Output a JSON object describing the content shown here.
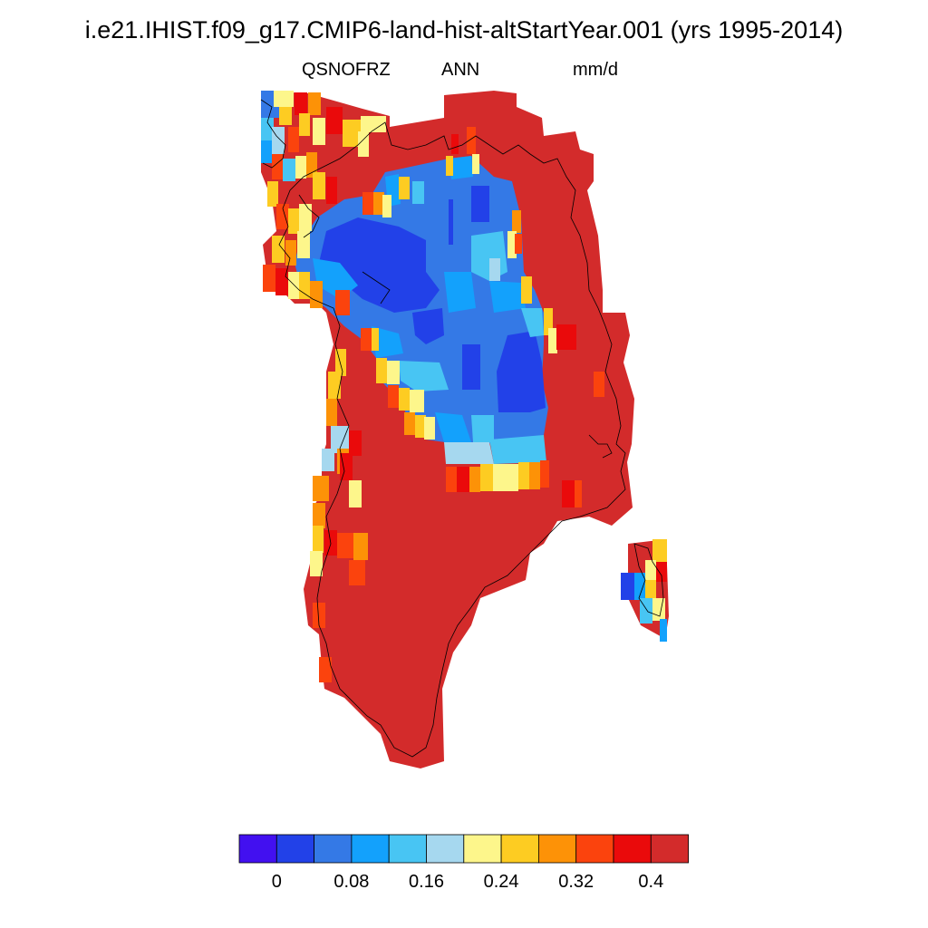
{
  "title": "i.e21.IHIST.f09_g17.CMIP6-land-hist-altStartYear.001 (yrs 1995-2014)",
  "variable": "QSNOFRZ",
  "season": "ANN",
  "units": "mm/d",
  "colorbar": {
    "colors": [
      "#4210f0",
      "#2241e8",
      "#3479e6",
      "#13a1fc",
      "#48c5f3",
      "#a6d8ef",
      "#fdf68b",
      "#fdcc22",
      "#fd9207",
      "#fb430d",
      "#ea0a0b",
      "#d32b2b"
    ],
    "labels": [
      "0",
      "0.08",
      "0.16",
      "0.24",
      "0.32",
      "0.4"
    ]
  }
}
